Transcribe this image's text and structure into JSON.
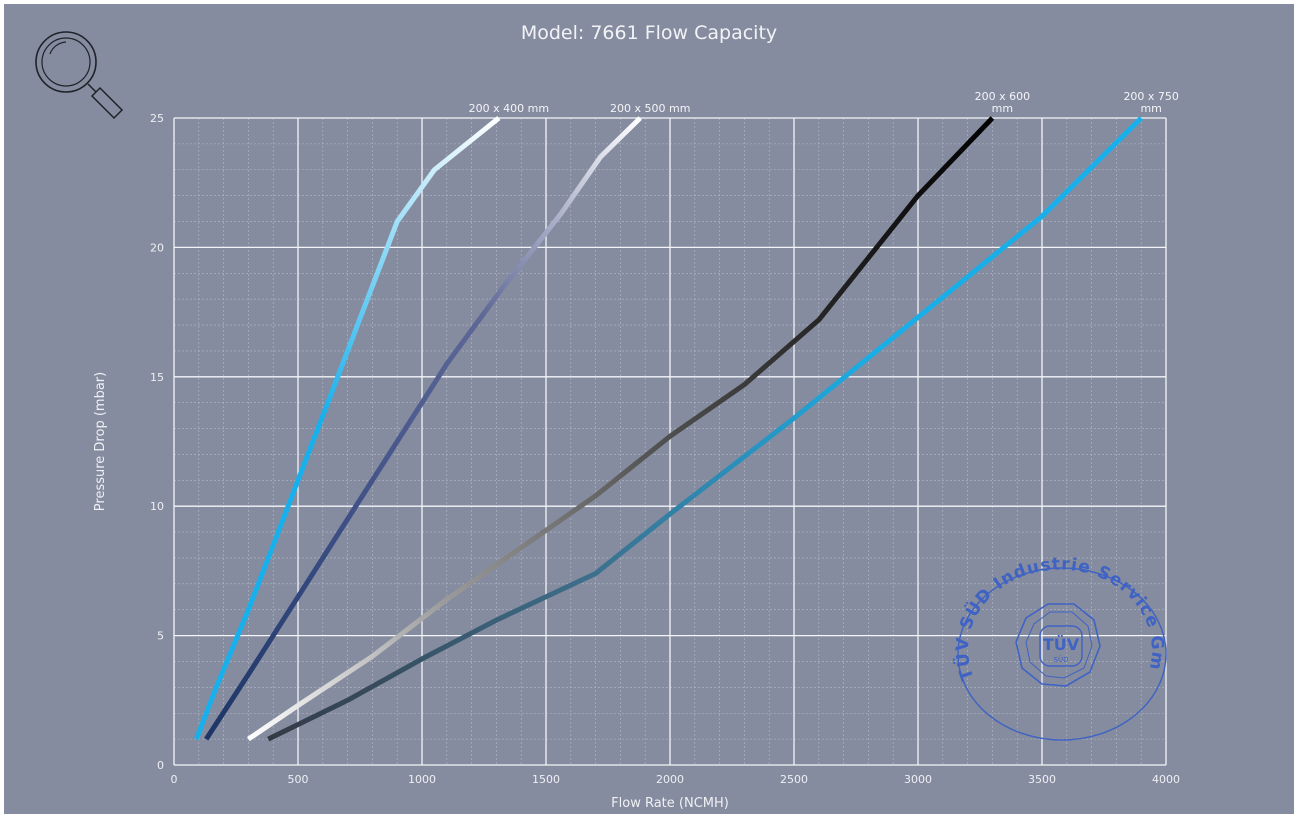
{
  "page": {
    "background": "#858c9f"
  },
  "title": "Model: 7661 Flow Capacity",
  "toolbar": {
    "zoom_icon": "magnifier-zoom-icon"
  },
  "seal": {
    "ring_text": "TÜV SÜD Industrie Service GmbH",
    "center_text": "TÜV",
    "center_subtext": "SÜD",
    "color": "#3f63c4"
  },
  "chart_data": {
    "type": "line",
    "title": "Model: 7661 Flow Capacity",
    "xlabel": "Flow Rate (NCMH)",
    "ylabel": "Pressure Drop (mbar)",
    "xlim": [
      0,
      4000
    ],
    "ylim": [
      0,
      25
    ],
    "xticks": [
      0,
      500,
      1000,
      1500,
      2000,
      2500,
      3000,
      3500,
      4000
    ],
    "yticks": [
      0,
      5,
      10,
      15,
      20,
      25
    ],
    "grid": true,
    "series": [
      {
        "name": "200 x 400 mm",
        "label_lines": [
          "200 x 400 mm"
        ],
        "colors": [
          "#18b0ec",
          "#18b0ec",
          "#ffffff"
        ],
        "points": [
          [
            90,
            1
          ],
          [
            170,
            3
          ],
          [
            300,
            6
          ],
          [
            420,
            9
          ],
          [
            540,
            12
          ],
          [
            660,
            15
          ],
          [
            780,
            18
          ],
          [
            900,
            21
          ],
          [
            1050,
            23
          ],
          [
            1310,
            25
          ]
        ]
      },
      {
        "name": "200 x 500 mm",
        "label_lines": [
          "200 x 500 mm"
        ],
        "colors": [
          "#1d3566",
          "#3d4f86",
          "#5e6897",
          "#ffffff"
        ],
        "points": [
          [
            130,
            1
          ],
          [
            300,
            3.5
          ],
          [
            500,
            6.5
          ],
          [
            700,
            9.5
          ],
          [
            900,
            12.5
          ],
          [
            1100,
            15.5
          ],
          [
            1330,
            18.5
          ],
          [
            1560,
            21.3
          ],
          [
            1720,
            23.5
          ],
          [
            1880,
            25
          ]
        ]
      },
      {
        "name": "200 x 600 mm",
        "label_lines": [
          "200 x 600",
          "mm"
        ],
        "colors": [
          "#ffffff",
          "#9a9a9a",
          "#555555",
          "#222222",
          "#000000"
        ],
        "points": [
          [
            300,
            1
          ],
          [
            500,
            2.3
          ],
          [
            800,
            4.2
          ],
          [
            1100,
            6.4
          ],
          [
            1400,
            8.4
          ],
          [
            1700,
            10.4
          ],
          [
            2000,
            12.7
          ],
          [
            2300,
            14.7
          ],
          [
            2600,
            17.2
          ],
          [
            2800,
            19.6
          ],
          [
            3000,
            22
          ],
          [
            3300,
            25
          ]
        ]
      },
      {
        "name": "200 x 750 mm",
        "label_lines": [
          "200 x 750",
          "mm"
        ],
        "colors": [
          "#333a45",
          "#3d6f8c",
          "#18aee6",
          "#18b0ec"
        ],
        "points": [
          [
            380,
            1
          ],
          [
            700,
            2.5
          ],
          [
            1000,
            4.1
          ],
          [
            1300,
            5.6
          ],
          [
            1700,
            7.4
          ],
          [
            2000,
            9.7
          ],
          [
            2500,
            13.4
          ],
          [
            3000,
            17.3
          ],
          [
            3500,
            21.2
          ],
          [
            3900,
            25
          ]
        ]
      }
    ]
  }
}
